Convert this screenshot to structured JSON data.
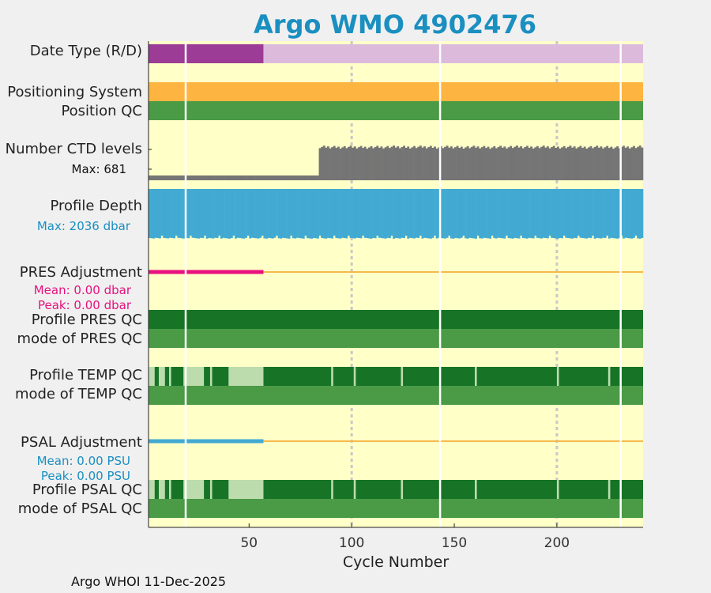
{
  "title": "Argo WMO 4902476",
  "footer": "Argo WHOI 11-Dec-2025",
  "chart_data": {
    "type": "bar",
    "title": "Argo WMO 4902476",
    "xlabel": "Cycle Number",
    "xlim": [
      1,
      242
    ],
    "xticks": [
      50,
      100,
      150,
      200
    ],
    "rows": [
      {
        "label": "Date Type (R/D)"
      },
      {
        "label": "Positioning System"
      },
      {
        "label": "Position QC"
      },
      {
        "label": "Number CTD levels",
        "sub": "Max: 681"
      },
      {
        "label": "Profile Depth",
        "sub": "Max: 2036 dbar"
      },
      {
        "label": "PRES Adjustment",
        "sub": "Mean: 0.00 dbar",
        "sub2": "Peak: 0.00 dbar"
      },
      {
        "label": "Profile PRES QC"
      },
      {
        "label": "mode of PRES QC"
      },
      {
        "label": "Profile TEMP QC"
      },
      {
        "label": "mode of TEMP QC"
      },
      {
        "label": "PSAL Adjustment",
        "sub": "Mean: 0.00 PSU",
        "sub2": "Peak: 0.00 PSU"
      },
      {
        "label": "Profile PSAL QC"
      },
      {
        "label": "mode of PSAL QC"
      }
    ],
    "date_type": [
      {
        "from": 1,
        "to": 57,
        "mode": "R"
      },
      {
        "from": 57,
        "to": 242,
        "mode": "D"
      }
    ],
    "missing_cycles": [
      19,
      143,
      231
    ],
    "dotted_cycles": [
      100,
      200
    ],
    "ctd_levels": {
      "max": 681,
      "low_levels_until_cycle": 84,
      "low_value": 90,
      "high_value": 650
    },
    "profile_depth": {
      "max_dbar": 2036,
      "typical_dbar": 2000
    },
    "pres_adjustment": {
      "mean_dbar": 0.0,
      "peak_dbar": 0.0,
      "adjusted_until_cycle": 57
    },
    "psal_adjustment": {
      "mean_psu": 0.0,
      "peak_psu": 0.0,
      "adjusted_until_cycle": 57
    },
    "temp_qc_light_ranges": [
      [
        1,
        4
      ],
      [
        6,
        9
      ],
      [
        11,
        12
      ],
      [
        18,
        28
      ],
      [
        31,
        32
      ],
      [
        40,
        57
      ],
      [
        90,
        91
      ],
      [
        101,
        102
      ],
      [
        124,
        125
      ],
      [
        160,
        161
      ],
      [
        200,
        201
      ],
      [
        225,
        226
      ]
    ],
    "psal_qc_light_ranges": [
      [
        1,
        4
      ],
      [
        6,
        9
      ],
      [
        11,
        12
      ],
      [
        18,
        28
      ],
      [
        31,
        32
      ],
      [
        40,
        57
      ],
      [
        90,
        91
      ],
      [
        101,
        102
      ],
      [
        124,
        125
      ],
      [
        160,
        161
      ],
      [
        200,
        201
      ],
      [
        225,
        226
      ]
    ],
    "colors": {
      "background": "#ffffc8",
      "realtime": "#9c3c96",
      "delayed": "#dcbadc",
      "positioning": "#fdb441",
      "qc_good": "#4a9a46",
      "qc_profile": "#177427",
      "qc_light": "#bcdcad",
      "ctd": "#757575",
      "depth": "#42aad2",
      "pres_adj": "#e8107e",
      "psal_adj": "#42aad2",
      "adj_line": "#f5b94a",
      "title": "#1a8fc0"
    }
  }
}
